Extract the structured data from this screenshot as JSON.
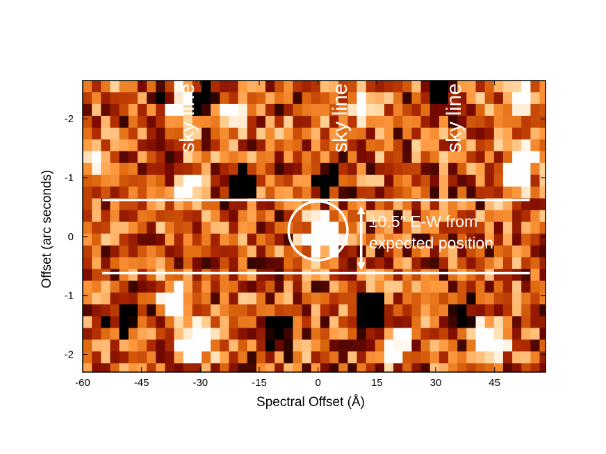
{
  "chart_data": {
    "type": "heatmap",
    "title": "",
    "xlabel": "Spectral Offset (Å)",
    "ylabel": "Offset (arc seconds)",
    "xlim": [
      -60,
      58
    ],
    "ylim": [
      -2.65,
      2.3
    ],
    "y_inverted": true,
    "x_ticks": [
      -60,
      -45,
      -30,
      -15,
      0,
      15,
      30,
      45
    ],
    "x_tick_labels": [
      "-60",
      "-45",
      "-30",
      "-15",
      "0",
      "15",
      "30",
      "45"
    ],
    "y_ticks": [
      -2,
      -1,
      0,
      -1,
      -2
    ],
    "y_tick_positions": [
      -2,
      -1,
      0,
      1,
      2
    ],
    "y_tick_labels": [
      "-2",
      "-1",
      "0",
      "-1",
      "-2"
    ],
    "colormap": "afmhot",
    "colormap_stops": [
      "#000000",
      "#7a0a00",
      "#b22d00",
      "#e06a10",
      "#ff9a40",
      "#ffd7a0",
      "#ffffff"
    ],
    "grid": false,
    "sky_lines": [
      {
        "label": "sky line",
        "x": -32
      },
      {
        "label": "sky line",
        "x": 7
      },
      {
        "label": "sky line",
        "x": 36
      }
    ],
    "aperture_lines_y": [
      -0.62,
      0.62
    ],
    "aperture_x_range": [
      -55,
      54
    ],
    "source_circle": {
      "x": 0,
      "y": -0.1,
      "radius_x": 7.5
    },
    "arrow": {
      "x": 11,
      "y_from": -0.5,
      "y_to": 0.55
    },
    "annotation": {
      "line1": "±0.5″ E-W from",
      "line2": "expected position"
    },
    "bright_features": [
      {
        "x": -37,
        "y": -2.15,
        "level": 1.0
      },
      {
        "x": -34,
        "y": -2.4,
        "level": 1.0
      },
      {
        "x": -36,
        "y": 1.0,
        "level": 1.0
      },
      {
        "x": -29,
        "y": 1.7,
        "level": 1.0
      },
      {
        "x": -32,
        "y": 1.9,
        "level": 1.0
      },
      {
        "x": 0,
        "y": 0.05,
        "level": 1.0
      },
      {
        "x": 3,
        "y": -0.05,
        "level": 0.9
      },
      {
        "x": 42,
        "y": 1.7,
        "level": 1.0
      },
      {
        "x": 45,
        "y": 1.85,
        "level": 1.0
      },
      {
        "x": 20,
        "y": 1.85,
        "level": 0.9
      },
      {
        "x": 49,
        "y": -1.0,
        "level": 1.0
      },
      {
        "x": 52,
        "y": -1.3,
        "level": 1.0
      },
      {
        "x": 52,
        "y": -2.45,
        "level": 1.0
      },
      {
        "x": -56,
        "y": -1.2,
        "level": 0.9
      },
      {
        "x": -33,
        "y": -0.8,
        "level": 0.9
      },
      {
        "x": 13,
        "y": -2.2,
        "level": 0.8
      },
      {
        "x": -23,
        "y": -2.0,
        "level": 0.7
      }
    ],
    "dark_patches": [
      {
        "x": -39,
        "y": -2.4
      },
      {
        "x": -30,
        "y": -2.4
      },
      {
        "x": 31,
        "y": -2.45
      },
      {
        "x": -20,
        "y": -0.95
      },
      {
        "x": 2,
        "y": -0.95
      },
      {
        "x": 37,
        "y": 1.4
      },
      {
        "x": -49,
        "y": 1.4
      },
      {
        "x": 14,
        "y": 1.3
      },
      {
        "x": -10,
        "y": 1.6
      }
    ]
  }
}
